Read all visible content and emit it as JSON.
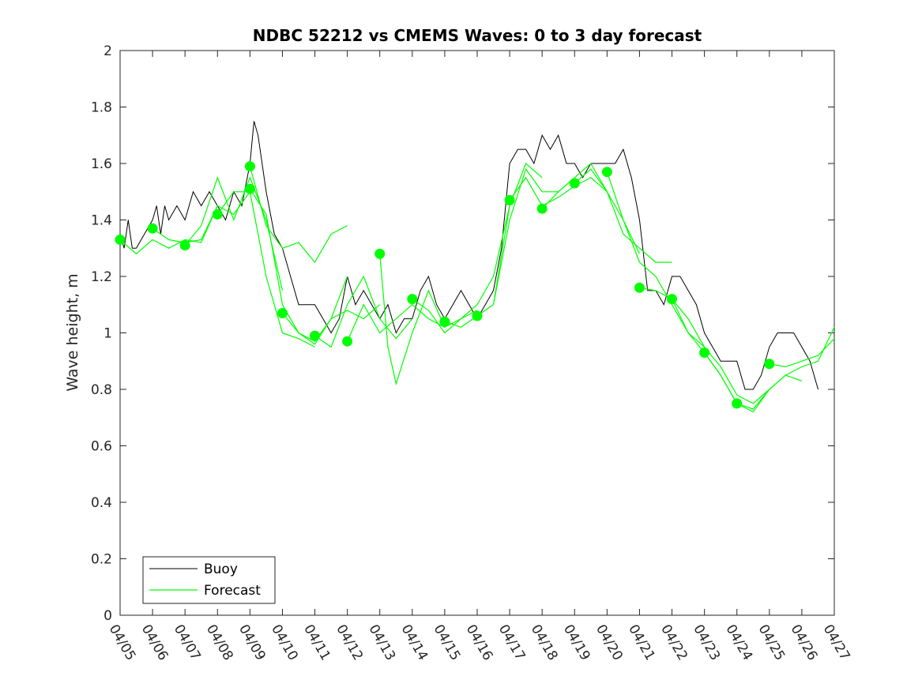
{
  "chart_data": {
    "type": "line",
    "title": "NDBC 52212 vs CMEMS Waves: 0 to 3 day forecast",
    "xlabel": "",
    "ylabel": "Wave height, m",
    "xlim": [
      "04/05",
      "04/27"
    ],
    "ylim": [
      0,
      2
    ],
    "y_ticks": [
      0,
      0.2,
      0.4,
      0.6,
      0.8,
      1,
      1.2,
      1.4,
      1.6,
      1.8,
      2
    ],
    "y_tick_labels": [
      "0",
      "0.2",
      "0.4",
      "0.6",
      "0.8",
      "1",
      "1.2",
      "1.4",
      "1.6",
      "1.8",
      "2"
    ],
    "x_tick_labels": [
      "04/05",
      "04/06",
      "04/07",
      "04/08",
      "04/09",
      "04/10",
      "04/11",
      "04/12",
      "04/13",
      "04/14",
      "04/15",
      "04/16",
      "04/17",
      "04/18",
      "04/19",
      "04/20",
      "04/21",
      "04/22",
      "04/23",
      "04/24",
      "04/25",
      "04/26",
      "04/27"
    ],
    "grid": false,
    "legend": {
      "position": "bottom-left",
      "entries": [
        "Buoy",
        "Forecast"
      ]
    },
    "colors": {
      "buoy": "#000000",
      "forecast": "#00ff00",
      "axes": "#262626"
    },
    "series": [
      {
        "name": "Buoy",
        "x": [
          "04/05 00:00",
          "04/05 03:00",
          "04/05 06:00",
          "04/05 09:00",
          "04/05 12:00",
          "04/05 18:00",
          "04/06 00:00",
          "04/06 03:00",
          "04/06 06:00",
          "04/06 09:00",
          "04/06 12:00",
          "04/06 18:00",
          "04/07 00:00",
          "04/07 06:00",
          "04/07 12:00",
          "04/07 18:00",
          "04/08 00:00",
          "04/08 06:00",
          "04/08 12:00",
          "04/08 18:00",
          "04/09 00:00",
          "04/09 03:00",
          "04/09 06:00",
          "04/09 12:00",
          "04/09 18:00",
          "04/10 00:00",
          "04/10 06:00",
          "04/10 12:00",
          "04/10 18:00",
          "04/11 00:00",
          "04/11 06:00",
          "04/11 12:00",
          "04/11 18:00",
          "04/12 00:00",
          "04/12 06:00",
          "04/12 12:00",
          "04/12 18:00",
          "04/13 00:00",
          "04/13 06:00",
          "04/13 12:00",
          "04/13 18:00",
          "04/14 00:00",
          "04/14 06:00",
          "04/14 12:00",
          "04/14 18:00",
          "04/15 00:00",
          "04/15 06:00",
          "04/15 12:00",
          "04/15 18:00",
          "04/16 00:00",
          "04/16 06:00",
          "04/16 12:00",
          "04/16 18:00",
          "04/17 00:00",
          "04/17 06:00",
          "04/17 12:00",
          "04/17 18:00",
          "04/18 00:00",
          "04/18 06:00",
          "04/18 12:00",
          "04/18 18:00",
          "04/19 00:00",
          "04/19 06:00",
          "04/19 12:00",
          "04/19 18:00",
          "04/20 00:00",
          "04/20 06:00",
          "04/20 12:00",
          "04/20 18:00",
          "04/21 00:00",
          "04/21 06:00",
          "04/21 12:00",
          "04/21 18:00",
          "04/22 00:00",
          "04/22 06:00",
          "04/22 12:00",
          "04/22 18:00",
          "04/23 00:00",
          "04/23 06:00",
          "04/23 12:00",
          "04/23 18:00",
          "04/24 00:00",
          "04/24 06:00",
          "04/24 12:00",
          "04/24 18:00",
          "04/25 00:00",
          "04/25 06:00",
          "04/25 12:00",
          "04/25 18:00",
          "04/26 00:00",
          "04/26 06:00",
          "04/26 12:00"
        ],
        "y": [
          1.35,
          1.3,
          1.4,
          1.3,
          1.3,
          1.35,
          1.4,
          1.45,
          1.35,
          1.45,
          1.4,
          1.45,
          1.4,
          1.5,
          1.45,
          1.5,
          1.45,
          1.4,
          1.5,
          1.45,
          1.6,
          1.75,
          1.7,
          1.5,
          1.35,
          1.3,
          1.2,
          1.1,
          1.1,
          1.1,
          1.05,
          1.0,
          1.05,
          1.2,
          1.1,
          1.15,
          1.1,
          1.05,
          1.1,
          1.0,
          1.05,
          1.05,
          1.15,
          1.2,
          1.1,
          1.05,
          1.1,
          1.15,
          1.1,
          1.05,
          1.1,
          1.15,
          1.3,
          1.6,
          1.65,
          1.65,
          1.6,
          1.7,
          1.65,
          1.7,
          1.6,
          1.6,
          1.55,
          1.6,
          1.6,
          1.6,
          1.6,
          1.65,
          1.55,
          1.4,
          1.15,
          1.15,
          1.1,
          1.2,
          1.2,
          1.15,
          1.1,
          1.0,
          0.95,
          0.9,
          0.9,
          0.9,
          0.8,
          0.8,
          0.85,
          0.95,
          1.0,
          1.0,
          1.0,
          0.95,
          0.9,
          0.8
        ]
      },
      {
        "name": "Forecast",
        "runs": [
          {
            "x": [
              "04/05 00:00",
              "04/05 12:00",
              "04/06 00:00",
              "04/06 12:00",
              "04/07 00:00",
              "04/07 12:00",
              "04/08 00:00"
            ],
            "y": [
              1.33,
              1.28,
              1.33,
              1.3,
              1.33,
              1.32,
              1.45
            ]
          },
          {
            "x": [
              "04/06 00:00",
              "04/06 12:00",
              "04/07 00:00",
              "04/07 12:00",
              "04/08 00:00",
              "04/08 12:00",
              "04/09 00:00"
            ],
            "y": [
              1.37,
              1.33,
              1.32,
              1.33,
              1.45,
              1.42,
              1.5
            ]
          },
          {
            "x": [
              "04/07 00:00",
              "04/07 12:00",
              "04/08 00:00",
              "04/08 12:00",
              "04/09 00:00",
              "04/09 12:00",
              "04/10 00:00"
            ],
            "y": [
              1.31,
              1.38,
              1.55,
              1.4,
              1.55,
              1.4,
              1.15
            ]
          },
          {
            "x": [
              "04/08 00:00",
              "04/08 12:00",
              "04/09 00:00",
              "04/09 12:00",
              "04/10 00:00",
              "04/10 12:00",
              "04/11 00:00"
            ],
            "y": [
              1.42,
              1.5,
              1.5,
              1.2,
              1.0,
              0.98,
              0.95
            ]
          },
          {
            "x": [
              "04/09 00:00",
              "04/09 12:00",
              "04/10 00:00",
              "04/10 12:00",
              "04/11 00:00",
              "04/11 12:00",
              "04/12 00:00"
            ],
            "y": [
              1.59,
              1.38,
              1.3,
              1.32,
              1.25,
              1.35,
              1.38
            ]
          },
          {
            "x": [
              "04/09 00:00",
              "04/09 12:00",
              "04/10 00:00",
              "04/10 12:00",
              "04/11 00:00",
              "04/11 12:00",
              "04/12 00:00"
            ],
            "y": [
              1.51,
              1.42,
              1.1,
              1.0,
              0.97,
              1.05,
              1.2
            ]
          },
          {
            "x": [
              "04/10 00:00",
              "04/10 12:00",
              "04/11 00:00",
              "04/11 12:00",
              "04/12 00:00",
              "04/12 12:00",
              "04/13 00:00"
            ],
            "y": [
              1.07,
              1.0,
              0.96,
              1.05,
              1.08,
              1.05,
              1.1
            ]
          },
          {
            "x": [
              "04/11 00:00",
              "04/11 12:00",
              "04/12 00:00",
              "04/12 12:00",
              "04/13 00:00",
              "04/13 12:00",
              "04/14 00:00"
            ],
            "y": [
              0.99,
              0.95,
              1.1,
              1.2,
              1.05,
              0.98,
              1.05
            ]
          },
          {
            "x": [
              "04/12 00:00",
              "04/12 12:00",
              "04/13 00:00",
              "04/13 12:00",
              "04/14 00:00",
              "04/14 12:00",
              "04/15 00:00"
            ],
            "y": [
              0.97,
              1.1,
              1.0,
              1.05,
              1.1,
              1.05,
              1.02
            ]
          },
          {
            "x": [
              "04/13 00:00",
              "04/13 06:00",
              "04/13 12:00",
              "04/14 00:00",
              "04/14 12:00",
              "04/15 00:00",
              "04/16 00:00"
            ],
            "y": [
              1.28,
              0.95,
              0.82,
              1.0,
              1.15,
              1.02,
              1.08
            ]
          },
          {
            "x": [
              "04/14 00:00",
              "04/14 12:00",
              "04/15 00:00",
              "04/15 12:00",
              "04/16 00:00",
              "04/16 12:00",
              "04/17 00:00"
            ],
            "y": [
              1.12,
              1.08,
              1.0,
              1.05,
              1.1,
              1.2,
              1.45
            ]
          },
          {
            "x": [
              "04/15 00:00",
              "04/15 12:00",
              "04/16 00:00",
              "04/16 12:00",
              "04/17 00:00",
              "04/17 12:00",
              "04/18 00:00"
            ],
            "y": [
              1.04,
              1.02,
              1.06,
              1.1,
              1.45,
              1.6,
              1.55
            ]
          },
          {
            "x": [
              "04/16 00:00",
              "04/16 12:00",
              "04/17 00:00",
              "04/17 12:00",
              "04/18 00:00",
              "04/18 12:00",
              "04/19 00:00"
            ],
            "y": [
              1.06,
              1.1,
              1.4,
              1.58,
              1.5,
              1.5,
              1.55
            ]
          },
          {
            "x": [
              "04/17 00:00",
              "04/17 12:00",
              "04/18 00:00",
              "04/18 12:00",
              "04/19 00:00",
              "04/19 12:00",
              "04/20 00:00"
            ],
            "y": [
              1.47,
              1.55,
              1.45,
              1.48,
              1.52,
              1.55,
              1.5
            ]
          },
          {
            "x": [
              "04/18 00:00",
              "04/18 12:00",
              "04/19 00:00",
              "04/19 12:00",
              "04/20 00:00",
              "04/20 12:00",
              "04/21 00:00"
            ],
            "y": [
              1.44,
              1.5,
              1.55,
              1.6,
              1.5,
              1.4,
              1.28
            ]
          },
          {
            "x": [
              "04/19 00:00",
              "04/19 12:00",
              "04/20 00:00",
              "04/20 12:00",
              "04/21 00:00",
              "04/21 12:00",
              "04/22 00:00"
            ],
            "y": [
              1.53,
              1.58,
              1.5,
              1.35,
              1.3,
              1.25,
              1.25
            ]
          },
          {
            "x": [
              "04/20 00:00",
              "04/20 12:00",
              "04/21 00:00",
              "04/21 12:00",
              "04/22 00:00",
              "04/22 12:00",
              "04/23 00:00"
            ],
            "y": [
              1.57,
              1.4,
              1.25,
              1.2,
              1.1,
              1.0,
              0.95
            ]
          },
          {
            "x": [
              "04/21 00:00",
              "04/21 12:00",
              "04/22 00:00",
              "04/22 12:00",
              "04/23 00:00",
              "04/23 12:00",
              "04/24 00:00"
            ],
            "y": [
              1.16,
              1.15,
              1.12,
              1.0,
              0.93,
              0.85,
              0.75
            ]
          },
          {
            "x": [
              "04/22 00:00",
              "04/22 12:00",
              "04/23 00:00",
              "04/23 12:00",
              "04/24 00:00",
              "04/24 12:00",
              "04/25 00:00"
            ],
            "y": [
              1.12,
              1.05,
              0.95,
              0.88,
              0.78,
              0.75,
              0.8
            ]
          },
          {
            "x": [
              "04/23 00:00",
              "04/23 12:00",
              "04/24 00:00",
              "04/24 12:00",
              "04/25 00:00",
              "04/25 12:00",
              "04/26 00:00"
            ],
            "y": [
              0.93,
              0.85,
              0.75,
              0.73,
              0.8,
              0.85,
              0.83
            ]
          },
          {
            "x": [
              "04/24 00:00",
              "04/24 12:00",
              "04/25 00:00",
              "04/25 12:00",
              "04/26 00:00",
              "04/26 12:00",
              "04/27 00:00"
            ],
            "y": [
              0.75,
              0.72,
              0.8,
              0.85,
              0.88,
              0.9,
              1.02
            ]
          },
          {
            "x": [
              "04/25 00:00",
              "04/25 12:00",
              "04/26 00:00",
              "04/26 12:00",
              "04/27 00:00"
            ],
            "y": [
              0.89,
              0.88,
              0.9,
              0.92,
              0.98
            ]
          }
        ],
        "markers": {
          "x": [
            "04/05",
            "04/06",
            "04/07",
            "04/08",
            "04/09",
            "04/09",
            "04/10",
            "04/11",
            "04/12",
            "04/13",
            "04/14",
            "04/15",
            "04/16",
            "04/17",
            "04/18",
            "04/19",
            "04/20",
            "04/21",
            "04/22",
            "04/23",
            "04/24",
            "04/25"
          ],
          "y": [
            1.33,
            1.37,
            1.31,
            1.42,
            1.59,
            1.51,
            1.07,
            0.99,
            0.97,
            1.28,
            1.12,
            1.04,
            1.06,
            1.47,
            1.44,
            1.53,
            1.57,
            1.16,
            1.12,
            0.93,
            0.75,
            0.89
          ]
        }
      }
    ]
  }
}
